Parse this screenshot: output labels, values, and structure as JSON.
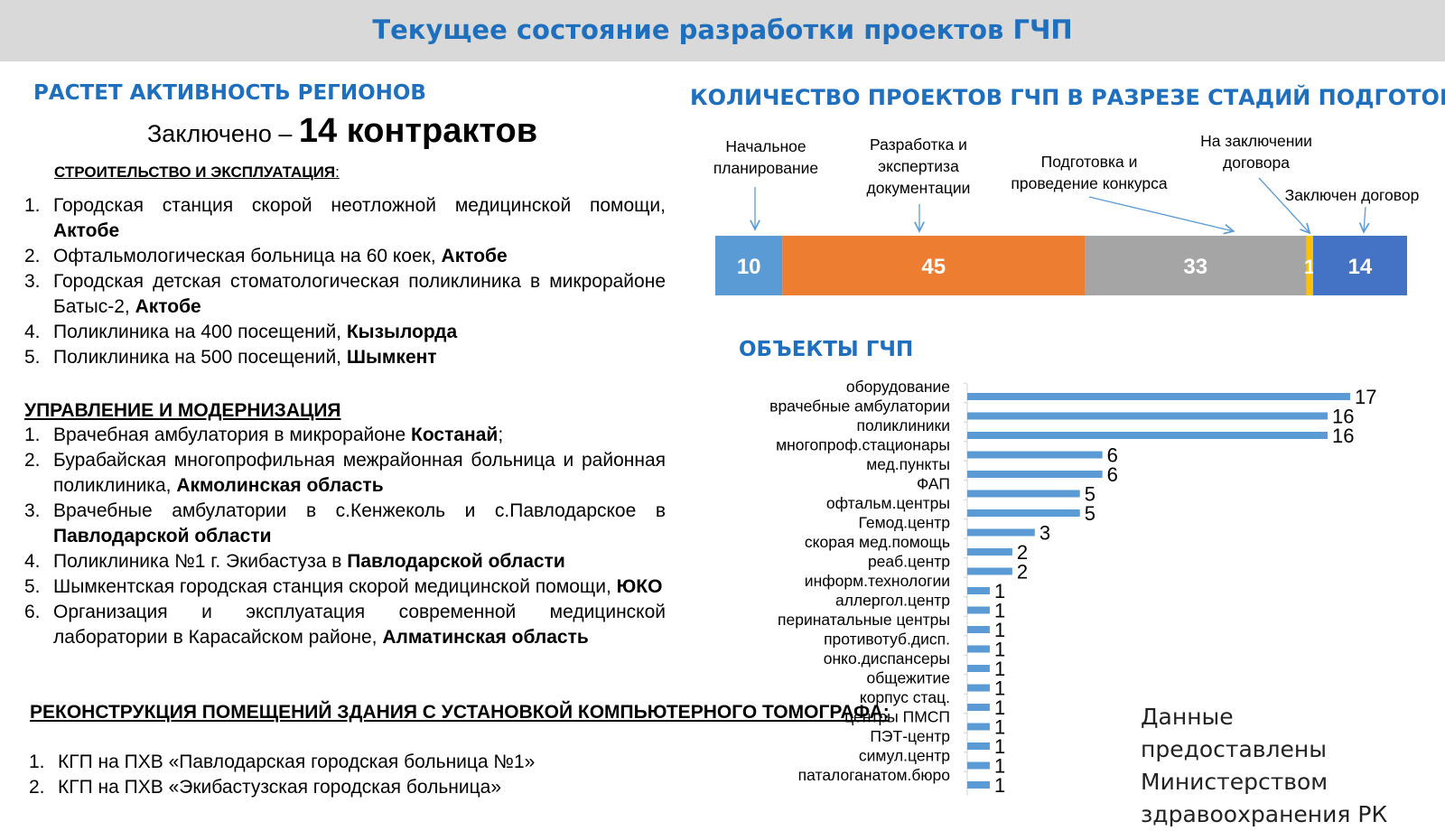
{
  "header": {
    "title": "Текущее состояние разработки проектов ГЧП"
  },
  "left": {
    "heading": "РАСТЕТ АКТИВНОСТЬ РЕГИОНОВ",
    "concluded_prefix": "Заключено – ",
    "concluded_value": "14 контрактов",
    "sections": [
      {
        "title": "СТРОИТЕЛЬСТВО И ЭКСПЛУАТАЦИЯ",
        "title_suffix": ":",
        "items": [
          {
            "num": "1.",
            "text": "Городская станция скорой неотложной медицинской помощи, ",
            "bold": "Актобе"
          },
          {
            "num": "2.",
            "text": "Офтальмологическая больница на 60 коек, ",
            "bold": "Актобе"
          },
          {
            "num": "3.",
            "text": "Городская детская стоматологическая поликлиника в микрорайоне Батыс-2, ",
            "bold": "Актобе"
          },
          {
            "num": "4.",
            "text": "Поликлиника на 400 посещений, ",
            "bold": "Кызылорда"
          },
          {
            "num": "5.",
            "text": "Поликлиника на 500 посещений, ",
            "bold": "Шымкент"
          }
        ]
      },
      {
        "title": "УПРАВЛЕНИЕ И МОДЕРНИЗАЦИЯ",
        "items": [
          {
            "num": "1.",
            "text": "Врачебная амбулатория в микрорайоне ",
            "bold": "Костанай",
            "after": ";"
          },
          {
            "num": "2.",
            "text": "Бурабайская многопрофильная межрайонная больница и районная поликлиника, ",
            "bold": "Акмолинская область"
          },
          {
            "num": "3.",
            "text": "Врачебные амбулатории в с.Кенжеколь и с.Павлодарское в ",
            "bold": "Павлодарской области"
          },
          {
            "num": "4.",
            "text": "Поликлиника №1 г. Экибастуза в ",
            "bold": "Павлодарской области"
          },
          {
            "num": "5.",
            "text": "Шымкентская городская станция скорой медицинской помощи, ",
            "bold": "ЮКО"
          },
          {
            "num": "6.",
            "text": "Организация и эксплуатация современной медицинской лаборатории в Карасайском районе, ",
            "bold": "Алматинская область"
          }
        ]
      },
      {
        "title": "РЕКОНСТРУКЦИЯ ПОМЕЩЕНИЙ ЗДАНИЯ С УСТАНОВКОЙ КОМПЬЮТЕРНОГО ТОМОГРАФА:",
        "items": [
          {
            "num": "1.",
            "text": "КГП на ПХВ «Павлодарская городская больница №1»"
          },
          {
            "num": "2.",
            "text": "КГП на ПХВ «Экибастузская городская больница»"
          }
        ]
      }
    ]
  },
  "stages_heading": "КОЛИЧЕСТВО ПРОЕКТОВ ГЧП В РАЗРЕЗЕ СТАДИЙ ПОДГОТОВКИ",
  "objects_heading": "ОБЪЕКТЫ ГЧП",
  "data_source": "Данные предоставлены Министерством здравоохранения РК",
  "chart_data": [
    {
      "type": "bar",
      "orientation": "horizontal-stacked",
      "title": "КОЛИЧЕСТВО ПРОЕКТОВ ГЧП В РАЗРЕЗЕ СТАДИЙ ПОДГОТОВКИ",
      "categories": [
        "Начальное планирование",
        "Разработка и экспертиза документации",
        "Подготовка и проведение конкурса",
        "На заключении договора",
        "Заключен договор"
      ],
      "values": [
        10,
        45,
        33,
        1,
        14
      ],
      "colors": [
        "#5b9bd5",
        "#ed7d31",
        "#a5a5a5",
        "#ffc000",
        "#4472c4"
      ],
      "label_lines": [
        [
          "Начальное",
          "планирование"
        ],
        [
          "Разработка и",
          "экспертиза",
          "документации"
        ],
        [
          "Подготовка и",
          "проведение конкурса"
        ],
        [
          "На заключении",
          "договора"
        ],
        [
          "Заключен договор"
        ]
      ]
    },
    {
      "type": "bar",
      "orientation": "horizontal",
      "title": "ОБЪЕКТЫ ГЧП",
      "categories": [
        "оборудование",
        "врачебные амбулатории",
        "поликлиники",
        "многопроф.стационары",
        "мед.пункты",
        "ФАП",
        "офтальм.центры",
        "Гемод.центр",
        "скорая мед.помощь",
        "реаб.центр",
        "информ.технологии",
        "аллергол.центр",
        "перинатальные центры",
        "противотуб.дисп.",
        "онко.диспансеры",
        "общежитие",
        "корпус стац.",
        "центры ПМСП",
        "ПЭТ-центр",
        "симул.центр",
        "паталоганатом.бюро"
      ],
      "values": [
        17,
        16,
        16,
        6,
        6,
        5,
        5,
        3,
        2,
        2,
        1,
        1,
        1,
        1,
        1,
        1,
        1,
        1,
        1,
        1,
        1
      ],
      "color": "#5b9bd5"
    }
  ]
}
